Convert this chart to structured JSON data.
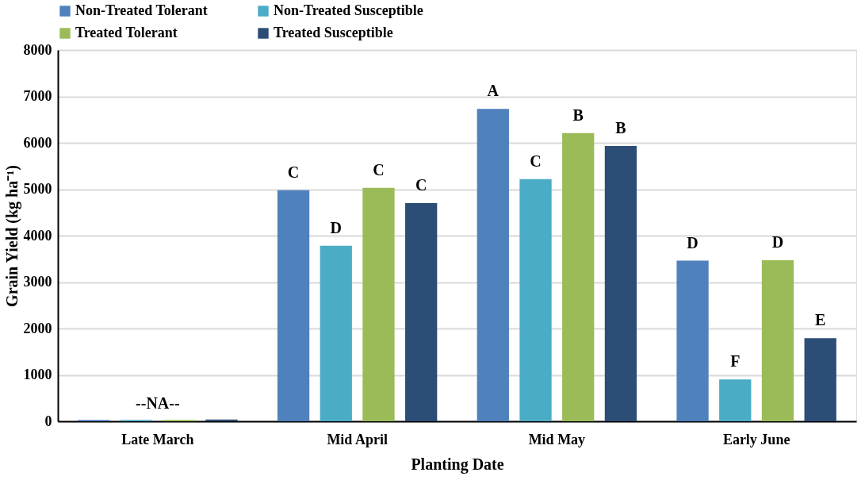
{
  "chart_data": {
    "type": "bar",
    "xlabel": "Planting Date",
    "ylabel": "Grain Yield (kg ha⁻¹)",
    "categories": [
      "Late March",
      "Mid April",
      "Mid May",
      "Early June"
    ],
    "series": [
      {
        "name": "Non-Treated Tolerant",
        "color": "#4f81bd",
        "values": [
          30,
          4980,
          6730,
          3460
        ],
        "value_labels": [
          null,
          "C",
          "A",
          "D"
        ]
      },
      {
        "name": "Non-Treated Susceptible",
        "color": "#4bacc6",
        "values": [
          30,
          3780,
          5220,
          900
        ],
        "value_labels": [
          null,
          "D",
          "C",
          "F"
        ]
      },
      {
        "name": "Treated Tolerant",
        "color": "#9bbb59",
        "values": [
          30,
          5030,
          6210,
          3470
        ],
        "value_labels": [
          null,
          "C",
          "B",
          "D"
        ]
      },
      {
        "name": "Treated Susceptible",
        "color": "#2c4d75",
        "values": [
          40,
          4700,
          5930,
          1790
        ],
        "value_labels": [
          null,
          "C",
          "B",
          "E"
        ]
      }
    ],
    "annotations": [
      "--NA--"
    ],
    "ylim": [
      0,
      8000
    ],
    "yticks": [
      0,
      1000,
      2000,
      3000,
      4000,
      5000,
      6000,
      7000,
      8000
    ],
    "grid": "y",
    "legend": "top"
  }
}
